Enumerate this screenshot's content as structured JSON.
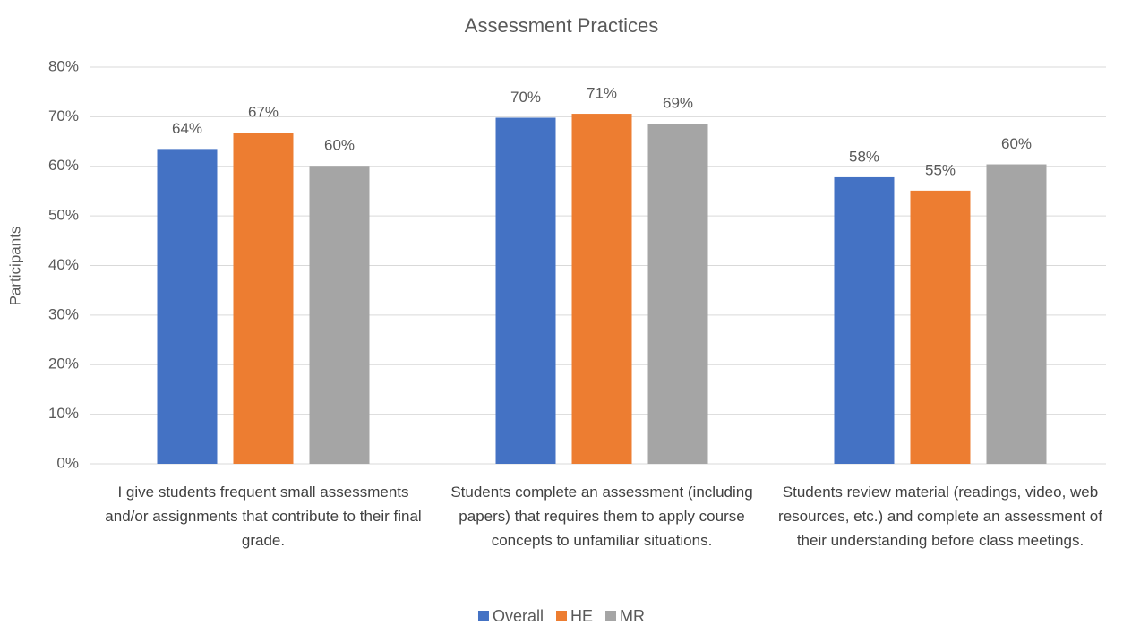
{
  "chart_data": {
    "type": "bar",
    "title": "Assessment Practices",
    "y_label": "Participants",
    "categories": [
      "I give students frequent small assessments and/or assignments that contribute to their final grade.",
      "Students complete an assessment (including papers) that requires them to apply course concepts to unfamiliar situations.",
      "Students review material (readings, video, web resources, etc.) and complete an assessment of their understanding before class meetings."
    ],
    "series": [
      {
        "name": "Overall",
        "color": "#4472c4",
        "values": [
          63.5,
          69.8,
          57.8
        ],
        "value_labels": [
          "64%",
          "70%",
          "58%"
        ]
      },
      {
        "name": "HE",
        "color": "#ed7d31",
        "values": [
          66.8,
          70.6,
          55.1
        ],
        "value_labels": [
          "67%",
          "71%",
          "55%"
        ]
      },
      {
        "name": "MR",
        "color": "#a5a5a5",
        "values": [
          60.1,
          68.6,
          60.4
        ],
        "value_labels": [
          "60%",
          "69%",
          "60%"
        ]
      }
    ],
    "ylim": [
      0,
      80
    ],
    "yticks": [
      {
        "value": 0,
        "label": "0%"
      },
      {
        "value": 10,
        "label": "10%"
      },
      {
        "value": 20,
        "label": "20%"
      },
      {
        "value": 30,
        "label": "30%"
      },
      {
        "value": 40,
        "label": "40%"
      },
      {
        "value": 50,
        "label": "50%"
      },
      {
        "value": 60,
        "label": "60%"
      },
      {
        "value": 70,
        "label": "70%"
      },
      {
        "value": 80,
        "label": "80%"
      }
    ],
    "grid": true,
    "legend": "bottom"
  }
}
